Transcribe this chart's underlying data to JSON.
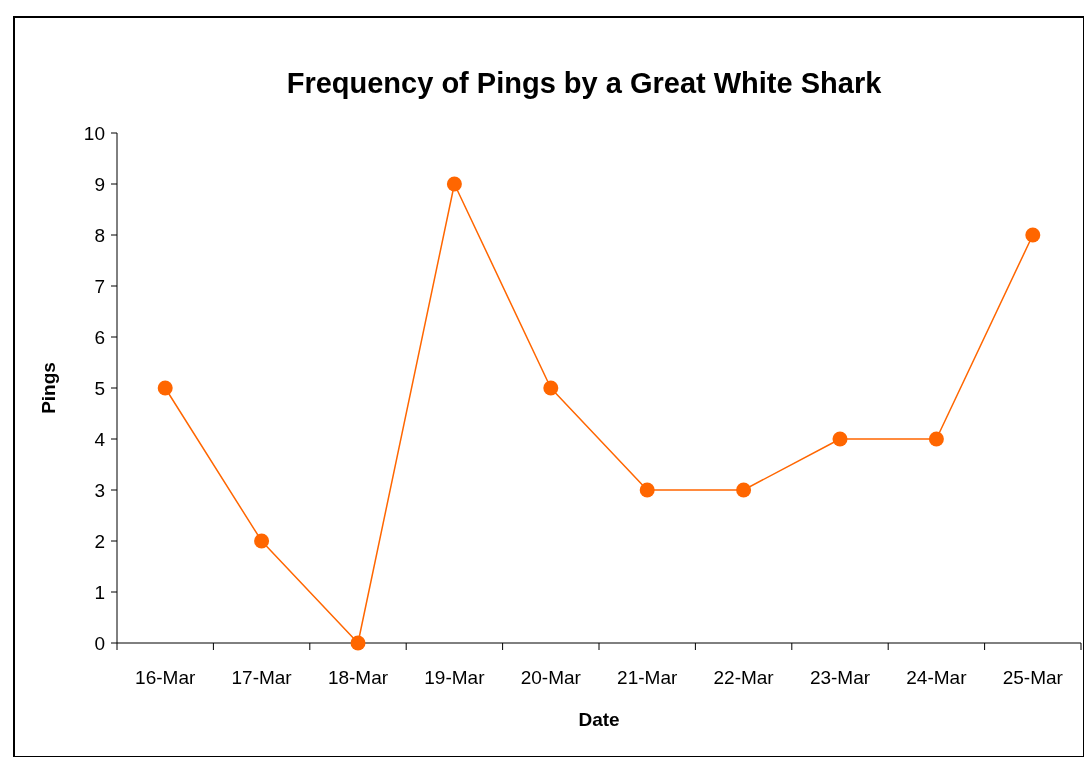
{
  "chart_data": {
    "type": "line",
    "title": "Frequency of Pings by a Great White Shark",
    "xlabel": "Date",
    "ylabel": "Pings",
    "categories": [
      "16-Mar",
      "17-Mar",
      "18-Mar",
      "19-Mar",
      "20-Mar",
      "21-Mar",
      "22-Mar",
      "23-Mar",
      "24-Mar",
      "25-Mar"
    ],
    "series": [
      {
        "color": "#ff6600",
        "values": [
          5,
          2,
          0,
          9,
          5,
          3,
          3,
          4,
          4,
          8
        ]
      }
    ],
    "ylim": [
      0,
      10
    ],
    "yticks": [
      0,
      1,
      2,
      3,
      4,
      5,
      6,
      7,
      8,
      9,
      10
    ],
    "grid": false,
    "marker": "circle",
    "line_style": "solid"
  }
}
